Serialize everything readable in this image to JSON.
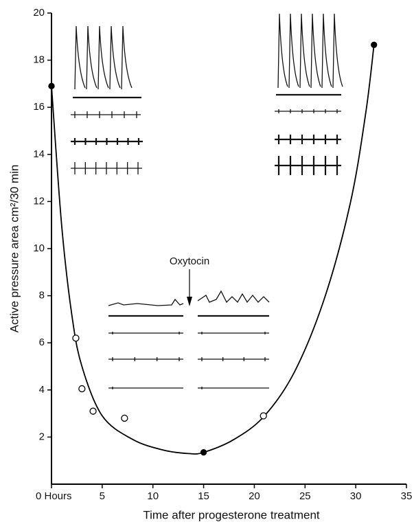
{
  "chart_data": {
    "type": "scatter",
    "xlabel": "Time after progesterone treatment",
    "ylabel": "Active pressure area cm²/30 min",
    "annotation": "Oxytocin",
    "xlim": [
      0,
      35
    ],
    "ylim": [
      0,
      20
    ],
    "xticks": [
      {
        "value": 0,
        "label": "0 Hours"
      },
      5,
      10,
      15,
      20,
      25,
      30,
      35
    ],
    "yticks": [
      2,
      4,
      6,
      8,
      10,
      12,
      14,
      16,
      18,
      20
    ],
    "series": [
      {
        "marker": "filled",
        "color": "#000000",
        "x": [
          0,
          15,
          31.8
        ],
        "values": [
          16.9,
          1.35,
          18.65
        ]
      },
      {
        "marker": "open",
        "color": "#000000",
        "x": [
          2.4,
          3.0,
          4.1,
          7.2,
          20.9
        ],
        "values": [
          6.2,
          4.05,
          3.1,
          2.8,
          2.9
        ]
      }
    ],
    "curve": {
      "color": "#000000",
      "x": [
        0,
        1,
        2,
        3,
        5,
        8,
        11,
        13.5,
        15,
        18,
        21,
        24,
        27,
        29.5,
        31,
        31.8
      ],
      "values": [
        16.9,
        11,
        7.2,
        5.0,
        2.9,
        1.9,
        1.45,
        1.3,
        1.35,
        1.9,
        2.9,
        4.8,
        8,
        12,
        15.8,
        18.65
      ]
    }
  }
}
